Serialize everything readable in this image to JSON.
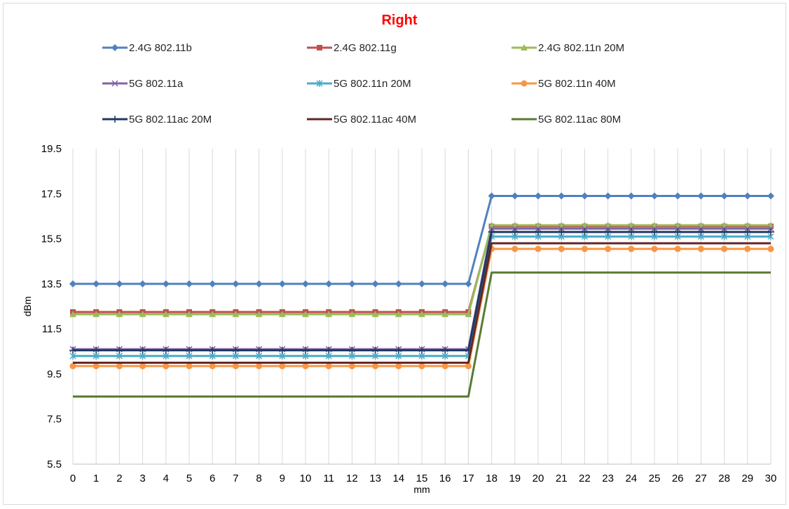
{
  "chart_data": {
    "type": "line",
    "title": "Right",
    "title_color": "#ff0000",
    "xlabel": "mm",
    "ylabel": "dBm",
    "x": [
      0,
      1,
      2,
      3,
      4,
      5,
      6,
      7,
      8,
      9,
      10,
      11,
      12,
      13,
      14,
      15,
      16,
      17,
      18,
      19,
      20,
      21,
      22,
      23,
      24,
      25,
      26,
      27,
      28,
      29,
      30
    ],
    "ylim": [
      5.5,
      19.5
    ],
    "yticks": [
      5.5,
      7.5,
      9.5,
      11.5,
      13.5,
      15.5,
      17.5,
      19.5
    ],
    "ytick_labels": [
      "5.5",
      "7.5",
      "9.5",
      "11.5",
      "13.5",
      "15.5",
      "17.5",
      "19.5"
    ],
    "grid": "vertical",
    "legend_position": "top",
    "series": [
      {
        "name": "2.4G 802.11b",
        "color": "#4f81bd",
        "marker": "diamond",
        "values": [
          13.5,
          13.5,
          13.5,
          13.5,
          13.5,
          13.5,
          13.5,
          13.5,
          13.5,
          13.5,
          13.5,
          13.5,
          13.5,
          13.5,
          13.5,
          13.5,
          13.5,
          13.5,
          17.4,
          17.4,
          17.4,
          17.4,
          17.4,
          17.4,
          17.4,
          17.4,
          17.4,
          17.4,
          17.4,
          17.4,
          17.4
        ]
      },
      {
        "name": "2.4G 802.11g",
        "color": "#c0504d",
        "marker": "square",
        "values": [
          12.25,
          12.25,
          12.25,
          12.25,
          12.25,
          12.25,
          12.25,
          12.25,
          12.25,
          12.25,
          12.25,
          12.25,
          12.25,
          12.25,
          12.25,
          12.25,
          12.25,
          12.25,
          16.05,
          16.05,
          16.05,
          16.05,
          16.05,
          16.05,
          16.05,
          16.05,
          16.05,
          16.05,
          16.05,
          16.05,
          16.05
        ]
      },
      {
        "name": "2.4G 802.11n 20M",
        "color": "#9bbb59",
        "marker": "triangle",
        "values": [
          12.15,
          12.15,
          12.15,
          12.15,
          12.15,
          12.15,
          12.15,
          12.15,
          12.15,
          12.15,
          12.15,
          12.15,
          12.15,
          12.15,
          12.15,
          12.15,
          12.15,
          12.15,
          16.1,
          16.1,
          16.1,
          16.1,
          16.1,
          16.1,
          16.1,
          16.1,
          16.1,
          16.1,
          16.1,
          16.1,
          16.1
        ]
      },
      {
        "name": "5G 802.11a",
        "color": "#8064a2",
        "marker": "x",
        "values": [
          10.6,
          10.6,
          10.6,
          10.6,
          10.6,
          10.6,
          10.6,
          10.6,
          10.6,
          10.6,
          10.6,
          10.6,
          10.6,
          10.6,
          10.6,
          10.6,
          10.6,
          10.6,
          15.95,
          15.95,
          15.95,
          15.95,
          15.95,
          15.95,
          15.95,
          15.95,
          15.95,
          15.95,
          15.95,
          15.95,
          15.95
        ]
      },
      {
        "name": "5G 802.11n 20M",
        "color": "#4bacc6",
        "marker": "star",
        "values": [
          10.3,
          10.3,
          10.3,
          10.3,
          10.3,
          10.3,
          10.3,
          10.3,
          10.3,
          10.3,
          10.3,
          10.3,
          10.3,
          10.3,
          10.3,
          10.3,
          10.3,
          10.3,
          15.6,
          15.6,
          15.6,
          15.6,
          15.6,
          15.6,
          15.6,
          15.6,
          15.6,
          15.6,
          15.6,
          15.6,
          15.6
        ]
      },
      {
        "name": "5G 802.11n 40M",
        "color": "#f79646",
        "marker": "circle",
        "values": [
          9.85,
          9.85,
          9.85,
          9.85,
          9.85,
          9.85,
          9.85,
          9.85,
          9.85,
          9.85,
          9.85,
          9.85,
          9.85,
          9.85,
          9.85,
          9.85,
          9.85,
          9.85,
          15.05,
          15.05,
          15.05,
          15.05,
          15.05,
          15.05,
          15.05,
          15.05,
          15.05,
          15.05,
          15.05,
          15.05,
          15.05
        ]
      },
      {
        "name": "5G 802.11ac 20M",
        "color": "#1f3864",
        "marker": "plus",
        "values": [
          10.55,
          10.55,
          10.55,
          10.55,
          10.55,
          10.55,
          10.55,
          10.55,
          10.55,
          10.55,
          10.55,
          10.55,
          10.55,
          10.55,
          10.55,
          10.55,
          10.55,
          10.55,
          15.8,
          15.8,
          15.8,
          15.8,
          15.8,
          15.8,
          15.8,
          15.8,
          15.8,
          15.8,
          15.8,
          15.8,
          15.8
        ]
      },
      {
        "name": "5G 802.11ac 40M",
        "color": "#632523",
        "marker": "none",
        "values": [
          10.0,
          10.0,
          10.0,
          10.0,
          10.0,
          10.0,
          10.0,
          10.0,
          10.0,
          10.0,
          10.0,
          10.0,
          10.0,
          10.0,
          10.0,
          10.0,
          10.0,
          10.0,
          15.3,
          15.3,
          15.3,
          15.3,
          15.3,
          15.3,
          15.3,
          15.3,
          15.3,
          15.3,
          15.3,
          15.3,
          15.3
        ]
      },
      {
        "name": "5G 802.11ac 80M",
        "color": "#5a7a32",
        "marker": "none",
        "values": [
          8.5,
          8.5,
          8.5,
          8.5,
          8.5,
          8.5,
          8.5,
          8.5,
          8.5,
          8.5,
          8.5,
          8.5,
          8.5,
          8.5,
          8.5,
          8.5,
          8.5,
          8.5,
          14.0,
          14.0,
          14.0,
          14.0,
          14.0,
          14.0,
          14.0,
          14.0,
          14.0,
          14.0,
          14.0,
          14.0,
          14.0
        ]
      }
    ]
  }
}
